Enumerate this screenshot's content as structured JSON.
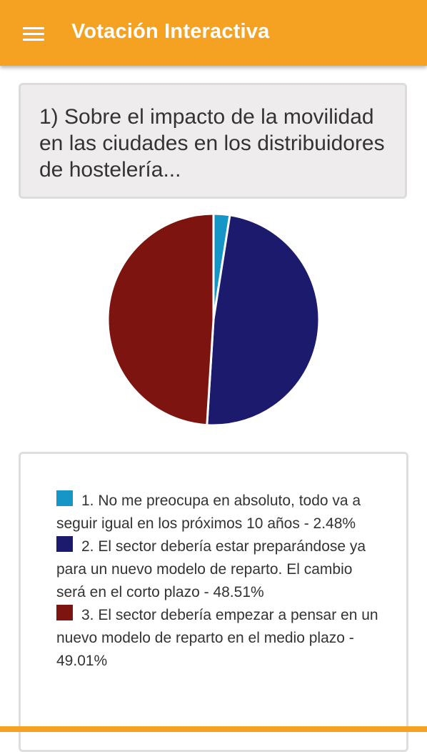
{
  "header": {
    "title": "Votación Interactiva",
    "menu_icon": "hamburger-menu-icon",
    "color": "#f5a122"
  },
  "question": {
    "text": "1) Sobre el impacto de la movilidad en las ciudades en los distribuidores de hostelería..."
  },
  "chart_data": {
    "type": "pie",
    "categories": [
      "1",
      "2",
      "3"
    ],
    "values": [
      2.48,
      48.51,
      49.01
    ],
    "colors": [
      "#1596c6",
      "#1c1a6d",
      "#7e140f"
    ]
  },
  "legend": {
    "items": [
      {
        "label": "1. No me preocupa en absoluto, todo va a seguir igual en los próximos 10 años - 2.48%",
        "color": "#1596c6"
      },
      {
        "label": "2. El sector debería estar preparándose ya para un nuevo modelo de reparto. El cambio será en el corto plazo - 48.51%",
        "color": "#1c1a6d"
      },
      {
        "label": "3. El sector debería empezar a pensar en un nuevo modelo de reparto en el medio plazo - 49.01%",
        "color": "#7e140f"
      }
    ]
  }
}
